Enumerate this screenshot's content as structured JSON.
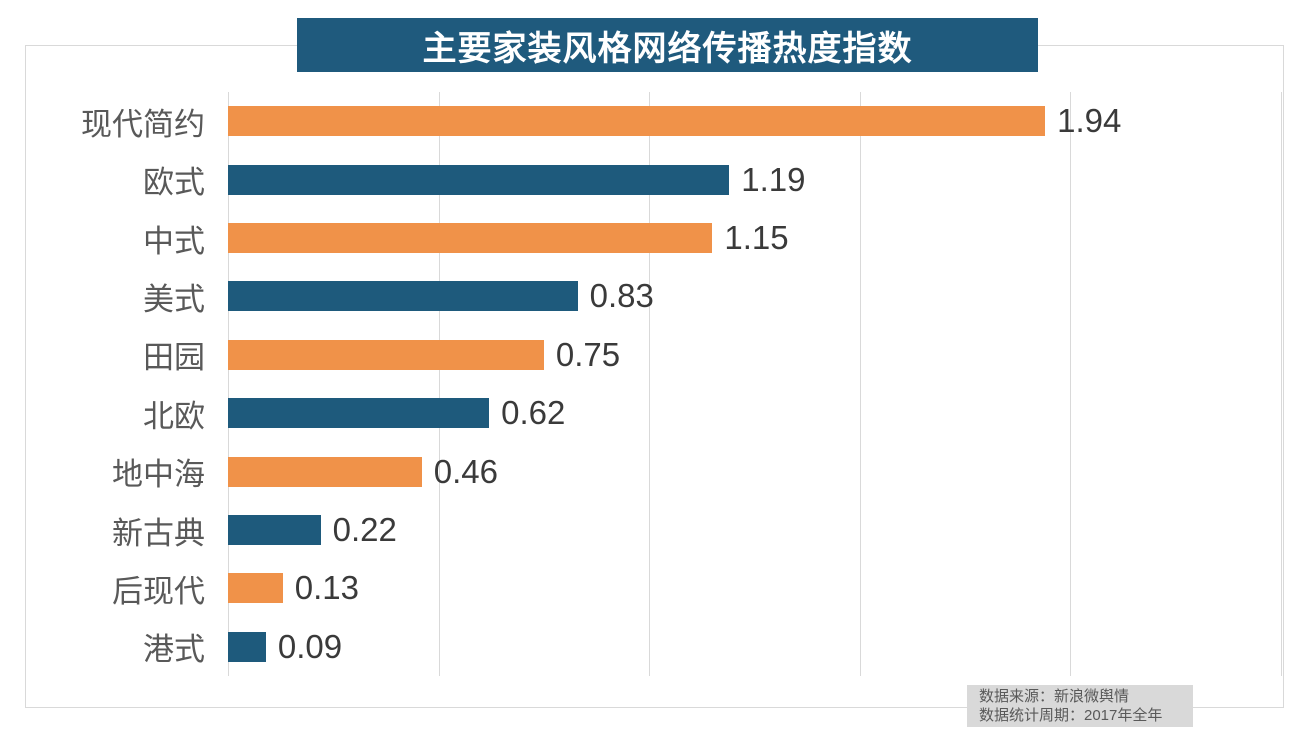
{
  "title": "主要家装风格网络传播热度指数",
  "source_note": {
    "line1": "数据来源：新浪微舆情",
    "line2": "数据统计周期：2017年全年"
  },
  "colors": {
    "title_bg": "#1F5A7D",
    "bar_orange": "#F09249",
    "bar_blue": "#1E5A7C",
    "grid": "#D9D9D9",
    "frame_border": "#D9D9D9",
    "category_text": "#595959",
    "value_text": "#3A3A3A",
    "note_bg": "#D9D9D9",
    "note_text": "#595959",
    "title_text": "#FFFFFF"
  },
  "chart_data": {
    "type": "bar",
    "orientation": "horizontal",
    "title": "主要家装风格网络传播热度指数",
    "categories": [
      "现代简约",
      "欧式",
      "中式",
      "美式",
      "田园",
      "北欧",
      "地中海",
      "新古典",
      "后现代",
      "港式"
    ],
    "values": [
      1.94,
      1.19,
      1.15,
      0.83,
      0.75,
      0.62,
      0.46,
      0.22,
      0.13,
      0.09
    ],
    "value_labels": [
      "1.94",
      "1.19",
      "1.15",
      "0.83",
      "0.75",
      "0.62",
      "0.46",
      "0.22",
      "0.13",
      "0.09"
    ],
    "bar_colors_alternate": [
      "#F09249",
      "#1E5A7C"
    ],
    "xlabel": "",
    "ylabel": "",
    "xlim": [
      0,
      2.5
    ],
    "grid_interval": 0.5,
    "grid": true,
    "legend": false,
    "axis_tick_labels_visible": false,
    "data_labels_visible": true
  }
}
